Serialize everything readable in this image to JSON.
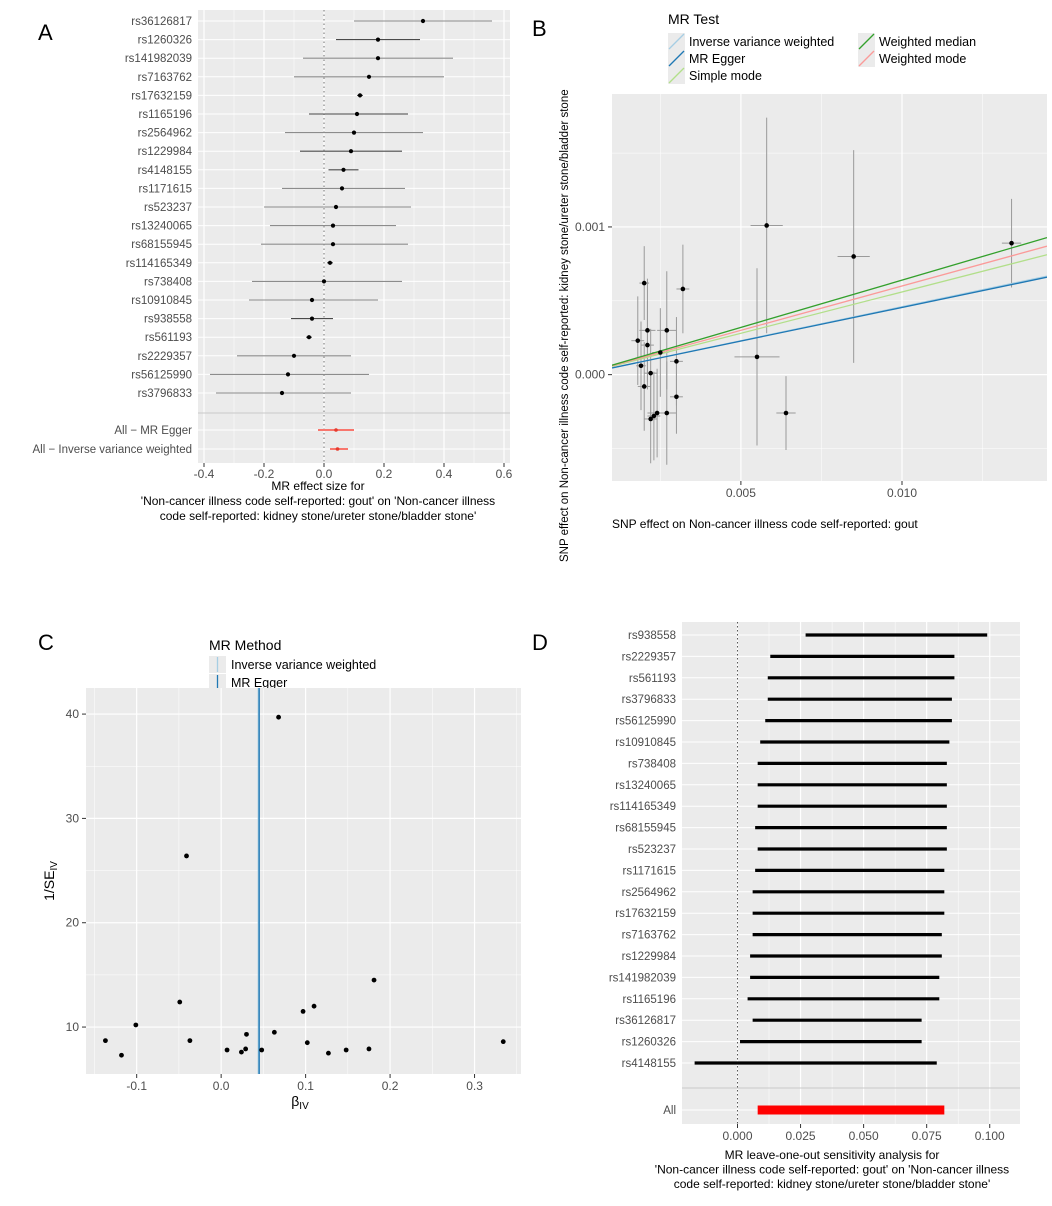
{
  "chart_data": [
    {
      "type": "forest",
      "panel_letter": "A",
      "xlabel_lines": [
        "MR effect size for",
        "'Non-cancer illness code  self-reported: gout' on 'Non-cancer illness",
        "code  self-reported: kidney stone/ureter stone/bladder stone'"
      ],
      "xlim": [
        -0.42,
        0.62
      ],
      "xticks": [
        -0.4,
        -0.2,
        0.0,
        0.2,
        0.4,
        0.6
      ],
      "xtick_labels": [
        "-0.4",
        "-0.2",
        "0.0",
        "0.2",
        "0.4",
        "0.6"
      ],
      "snps": [
        {
          "label": "rs36126817",
          "est": 0.33,
          "lo": 0.1,
          "hi": 0.56
        },
        {
          "label": "rs1260326",
          "est": 0.18,
          "lo": 0.04,
          "hi": 0.32
        },
        {
          "label": "rs141982039",
          "est": 0.18,
          "lo": -0.07,
          "hi": 0.43
        },
        {
          "label": "rs7163762",
          "est": 0.15,
          "lo": -0.1,
          "hi": 0.4
        },
        {
          "label": "rs17632159",
          "est": 0.12,
          "lo": 0.11,
          "hi": 0.13
        },
        {
          "label": "rs1165196",
          "est": 0.11,
          "lo": -0.05,
          "hi": 0.28
        },
        {
          "label": "rs2564962",
          "est": 0.1,
          "lo": -0.13,
          "hi": 0.33
        },
        {
          "label": "rs1229984",
          "est": 0.09,
          "lo": -0.08,
          "hi": 0.26
        },
        {
          "label": "rs4148155",
          "est": 0.065,
          "lo": 0.015,
          "hi": 0.115
        },
        {
          "label": "rs1171615",
          "est": 0.06,
          "lo": -0.14,
          "hi": 0.27
        },
        {
          "label": "rs523237",
          "est": 0.04,
          "lo": -0.2,
          "hi": 0.29
        },
        {
          "label": "rs13240065",
          "est": 0.03,
          "lo": -0.18,
          "hi": 0.24
        },
        {
          "label": "rs68155945",
          "est": 0.03,
          "lo": -0.21,
          "hi": 0.28
        },
        {
          "label": "rs114165349",
          "est": 0.02,
          "lo": 0.01,
          "hi": 0.03
        },
        {
          "label": "rs738408",
          "est": 0.0,
          "lo": -0.24,
          "hi": 0.26
        },
        {
          "label": "rs10910845",
          "est": -0.04,
          "lo": -0.25,
          "hi": 0.18
        },
        {
          "label": "rs938558",
          "est": -0.04,
          "lo": -0.11,
          "hi": 0.03
        },
        {
          "label": "rs561193",
          "est": -0.05,
          "lo": -0.06,
          "hi": -0.04
        },
        {
          "label": "rs2229357",
          "est": -0.1,
          "lo": -0.29,
          "hi": 0.09
        },
        {
          "label": "rs56125990",
          "est": -0.12,
          "lo": -0.38,
          "hi": 0.15
        },
        {
          "label": "rs3796833",
          "est": -0.14,
          "lo": -0.36,
          "hi": 0.09
        }
      ],
      "summary": [
        {
          "label": "All − MR Egger",
          "est": 0.04,
          "lo": -0.02,
          "hi": 0.1
        },
        {
          "label": "All − Inverse variance weighted",
          "est": 0.045,
          "lo": 0.02,
          "hi": 0.08
        }
      ]
    },
    {
      "type": "scatter",
      "panel_letter": "B",
      "xlabel": "SNP effect on Non-cancer illness code  self-reported: gout",
      "ylabel": "SNP effect on Non-cancer illness code  self-reported: kidney stone/ureter stone/bladder stone",
      "xlim": [
        0.001,
        0.0145
      ],
      "ylim": [
        -0.00072,
        0.0019
      ],
      "xticks": [
        0.005,
        0.01
      ],
      "xtick_labels": [
        "0.005",
        "0.010"
      ],
      "yticks": [
        0.0,
        0.001
      ],
      "ytick_labels": [
        "0.000",
        "0.001"
      ],
      "legend_title": "MR Test",
      "legend": [
        {
          "name": "Inverse variance weighted",
          "color": "#a6cee3"
        },
        {
          "name": "Weighted median",
          "color": "#33a02c"
        },
        {
          "name": "MR Egger",
          "color": "#1f78b4"
        },
        {
          "name": "Weighted mode",
          "color": "#fb9a99"
        },
        {
          "name": "Simple mode",
          "color": "#b2df8a"
        }
      ],
      "lines": [
        {
          "name": "Inverse variance weighted",
          "intercept": 0.0,
          "slope": 0.046,
          "color": "#a6cee3"
        },
        {
          "name": "MR Egger",
          "intercept": 0.0,
          "slope": 0.0455,
          "color": "#1f78b4"
        },
        {
          "name": "Weighted median",
          "intercept": 0.0,
          "slope": 0.064,
          "color": "#33a02c"
        },
        {
          "name": "Weighted mode",
          "intercept": 0.0,
          "slope": 0.06,
          "color": "#fb9a99"
        },
        {
          "name": "Simple mode",
          "intercept": 0.0,
          "slope": 0.056,
          "color": "#b2df8a"
        }
      ],
      "points": [
        {
          "x": 0.0058,
          "y": 0.00101,
          "xse": 0.0005,
          "yse": 0.00073
        },
        {
          "x": 0.0085,
          "y": 0.0008,
          "xse": 0.0005,
          "yse": 0.00072
        },
        {
          "x": 0.0134,
          "y": 0.00089,
          "xse": 0.0003,
          "yse": 0.0003
        },
        {
          "x": 0.002,
          "y": 0.00062,
          "xse": 0.00015,
          "yse": 0.00025
        },
        {
          "x": 0.0032,
          "y": 0.00058,
          "xse": 0.0002,
          "yse": 0.0003
        },
        {
          "x": 0.0021,
          "y": 0.0003,
          "xse": 0.00025,
          "yse": 0.00035
        },
        {
          "x": 0.0027,
          "y": 0.0003,
          "xse": 0.0003,
          "yse": 0.0004
        },
        {
          "x": 0.0018,
          "y": 0.00023,
          "xse": 0.0002,
          "yse": 0.0003
        },
        {
          "x": 0.0021,
          "y": 0.0002,
          "xse": 0.0002,
          "yse": 0.0003
        },
        {
          "x": 0.0025,
          "y": 0.00015,
          "xse": 0.00025,
          "yse": 0.0003
        },
        {
          "x": 0.0055,
          "y": 0.00012,
          "xse": 0.0007,
          "yse": 0.0006
        },
        {
          "x": 0.003,
          "y": 9e-05,
          "xse": 0.0002,
          "yse": 0.0003
        },
        {
          "x": 0.0019,
          "y": 6e-05,
          "xse": 0.00015,
          "yse": 0.0003
        },
        {
          "x": 0.0022,
          "y": 1e-05,
          "xse": 0.0002,
          "yse": 0.0003
        },
        {
          "x": 0.002,
          "y": -8e-05,
          "xse": 0.0002,
          "yse": 0.0003
        },
        {
          "x": 0.003,
          "y": -0.00015,
          "xse": 0.0002,
          "yse": 0.00025
        },
        {
          "x": 0.0024,
          "y": -0.00026,
          "xse": 0.0003,
          "yse": 0.0003
        },
        {
          "x": 0.0027,
          "y": -0.00026,
          "xse": 0.0003,
          "yse": 0.00035
        },
        {
          "x": 0.0023,
          "y": -0.00028,
          "xse": 0.0002,
          "yse": 0.0003
        },
        {
          "x": 0.0064,
          "y": -0.00026,
          "xse": 0.0003,
          "yse": 0.00025
        },
        {
          "x": 0.0022,
          "y": -0.0003,
          "xse": 0.0002,
          "yse": 0.0003
        }
      ]
    },
    {
      "type": "funnel",
      "panel_letter": "C",
      "xlabel": "β",
      "xlabel_sub": "IV",
      "ylabel": "1/SE",
      "ylabel_sub": "IV",
      "xlim": [
        -0.16,
        0.355
      ],
      "ylim": [
        5.5,
        42.5
      ],
      "xticks": [
        -0.1,
        0.0,
        0.1,
        0.2,
        0.3
      ],
      "xtick_labels": [
        "-0.1",
        "0.0",
        "0.1",
        "0.2",
        "0.3"
      ],
      "yticks": [
        10,
        20,
        30,
        40
      ],
      "ytick_labels": [
        "10",
        "20",
        "30",
        "40"
      ],
      "legend_title": "MR Method",
      "legend": [
        {
          "name": "Inverse variance weighted",
          "color": "#a6cee3"
        },
        {
          "name": "MR Egger",
          "color": "#1f78b4"
        }
      ],
      "vlines": [
        {
          "name": "Inverse variance weighted",
          "x": 0.044,
          "color": "#a6cee3"
        },
        {
          "name": "MR Egger",
          "x": 0.045,
          "color": "#1f78b4"
        }
      ],
      "points": [
        {
          "x": -0.137,
          "y": 8.7
        },
        {
          "x": -0.118,
          "y": 7.3
        },
        {
          "x": -0.101,
          "y": 10.2
        },
        {
          "x": -0.049,
          "y": 12.4
        },
        {
          "x": -0.041,
          "y": 26.4
        },
        {
          "x": -0.037,
          "y": 8.7
        },
        {
          "x": 0.007,
          "y": 7.8
        },
        {
          "x": 0.024,
          "y": 7.6
        },
        {
          "x": 0.029,
          "y": 7.9
        },
        {
          "x": 0.03,
          "y": 9.3
        },
        {
          "x": 0.048,
          "y": 7.8
        },
        {
          "x": 0.063,
          "y": 9.5
        },
        {
          "x": 0.068,
          "y": 39.7
        },
        {
          "x": 0.097,
          "y": 11.5
        },
        {
          "x": 0.102,
          "y": 8.5
        },
        {
          "x": 0.11,
          "y": 12.0
        },
        {
          "x": 0.127,
          "y": 7.5
        },
        {
          "x": 0.148,
          "y": 7.8
        },
        {
          "x": 0.175,
          "y": 7.9
        },
        {
          "x": 0.181,
          "y": 14.5
        },
        {
          "x": 0.334,
          "y": 8.6
        }
      ]
    },
    {
      "type": "leave-one-out",
      "panel_letter": "D",
      "xlabel_lines": [
        "MR leave-one-out sensitivity analysis for",
        "'Non-cancer illness code  self-reported: gout' on 'Non-cancer illness",
        "code  self-reported: kidney stone/ureter stone/bladder stone'"
      ],
      "xlim": [
        -0.022,
        0.112
      ],
      "xticks": [
        0.0,
        0.025,
        0.05,
        0.075,
        0.1
      ],
      "xtick_labels": [
        "0.000",
        "0.025",
        "0.050",
        "0.075",
        "0.100"
      ],
      "snps": [
        {
          "label": "rs938558",
          "lo": 0.027,
          "hi": 0.099
        },
        {
          "label": "rs2229357",
          "lo": 0.013,
          "hi": 0.086
        },
        {
          "label": "rs561193",
          "lo": 0.012,
          "hi": 0.086
        },
        {
          "label": "rs3796833",
          "lo": 0.012,
          "hi": 0.085
        },
        {
          "label": "rs56125990",
          "lo": 0.011,
          "hi": 0.085
        },
        {
          "label": "rs10910845",
          "lo": 0.009,
          "hi": 0.084
        },
        {
          "label": "rs738408",
          "lo": 0.008,
          "hi": 0.083
        },
        {
          "label": "rs13240065",
          "lo": 0.008,
          "hi": 0.083
        },
        {
          "label": "rs114165349",
          "lo": 0.008,
          "hi": 0.083
        },
        {
          "label": "rs68155945",
          "lo": 0.007,
          "hi": 0.083
        },
        {
          "label": "rs523237",
          "lo": 0.008,
          "hi": 0.083
        },
        {
          "label": "rs1171615",
          "lo": 0.007,
          "hi": 0.082
        },
        {
          "label": "rs2564962",
          "lo": 0.006,
          "hi": 0.082
        },
        {
          "label": "rs17632159",
          "lo": 0.006,
          "hi": 0.082
        },
        {
          "label": "rs7163762",
          "lo": 0.006,
          "hi": 0.081
        },
        {
          "label": "rs1229984",
          "lo": 0.005,
          "hi": 0.081
        },
        {
          "label": "rs141982039",
          "lo": 0.005,
          "hi": 0.08
        },
        {
          "label": "rs1165196",
          "lo": 0.004,
          "hi": 0.08
        },
        {
          "label": "rs36126817",
          "lo": 0.006,
          "hi": 0.073
        },
        {
          "label": "rs1260326",
          "lo": 0.001,
          "hi": 0.073
        },
        {
          "label": "rs4148155",
          "lo": -0.017,
          "hi": 0.079
        }
      ],
      "all": {
        "label": "All",
        "lo": 0.008,
        "hi": 0.082,
        "color": "#ff0000"
      }
    }
  ]
}
